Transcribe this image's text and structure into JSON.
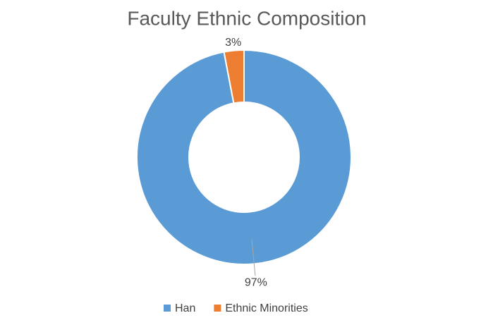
{
  "chart_data": {
    "type": "donut",
    "title": "Faculty Ethnic Composition",
    "categories": [
      "Han",
      "Ethnic Minorities"
    ],
    "values": [
      97,
      3
    ],
    "value_labels": [
      "97%",
      "3%"
    ],
    "colors": [
      "#5b9bd5",
      "#ed7d31"
    ],
    "legend": "bottom"
  }
}
